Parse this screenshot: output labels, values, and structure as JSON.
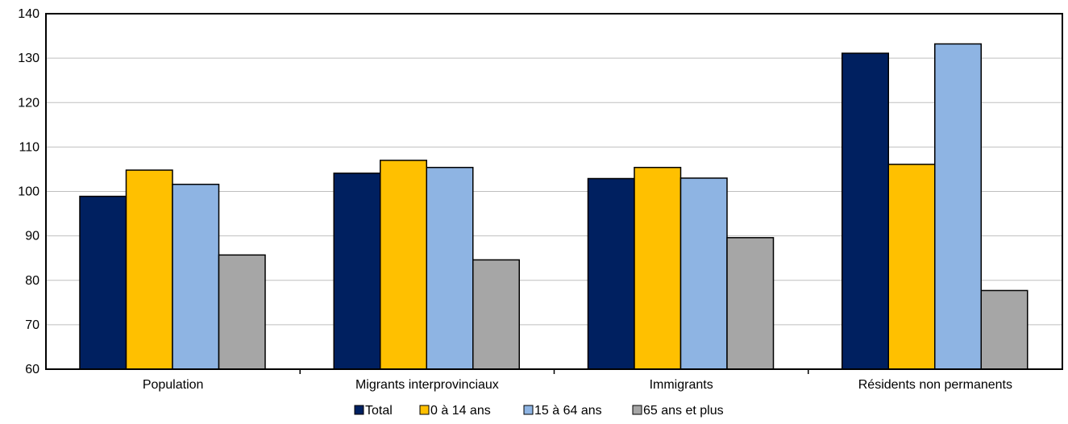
{
  "chart_data": {
    "type": "bar",
    "title": "",
    "xlabel": "",
    "ylabel": "",
    "ylim": [
      60,
      140
    ],
    "yticks": [
      60,
      70,
      80,
      90,
      100,
      110,
      120,
      130,
      140
    ],
    "grid": true,
    "legend_position": "bottom",
    "categories": [
      "Population",
      "Migrants interprovinciaux",
      "Immigrants",
      "Résidents non permanents"
    ],
    "series": [
      {
        "name": "Total",
        "color": "#002060",
        "values": [
          98.9,
          104.1,
          102.9,
          131.1
        ]
      },
      {
        "name": "0 à 14 ans",
        "color": "#FFC000",
        "values": [
          104.8,
          107.0,
          105.4,
          106.1
        ]
      },
      {
        "name": "15 à 64 ans",
        "color": "#8EB4E3",
        "values": [
          101.6,
          105.4,
          103.0,
          133.2
        ]
      },
      {
        "name": "65 ans et plus",
        "color": "#A6A6A6",
        "values": [
          85.7,
          84.6,
          89.6,
          77.7
        ]
      }
    ]
  }
}
